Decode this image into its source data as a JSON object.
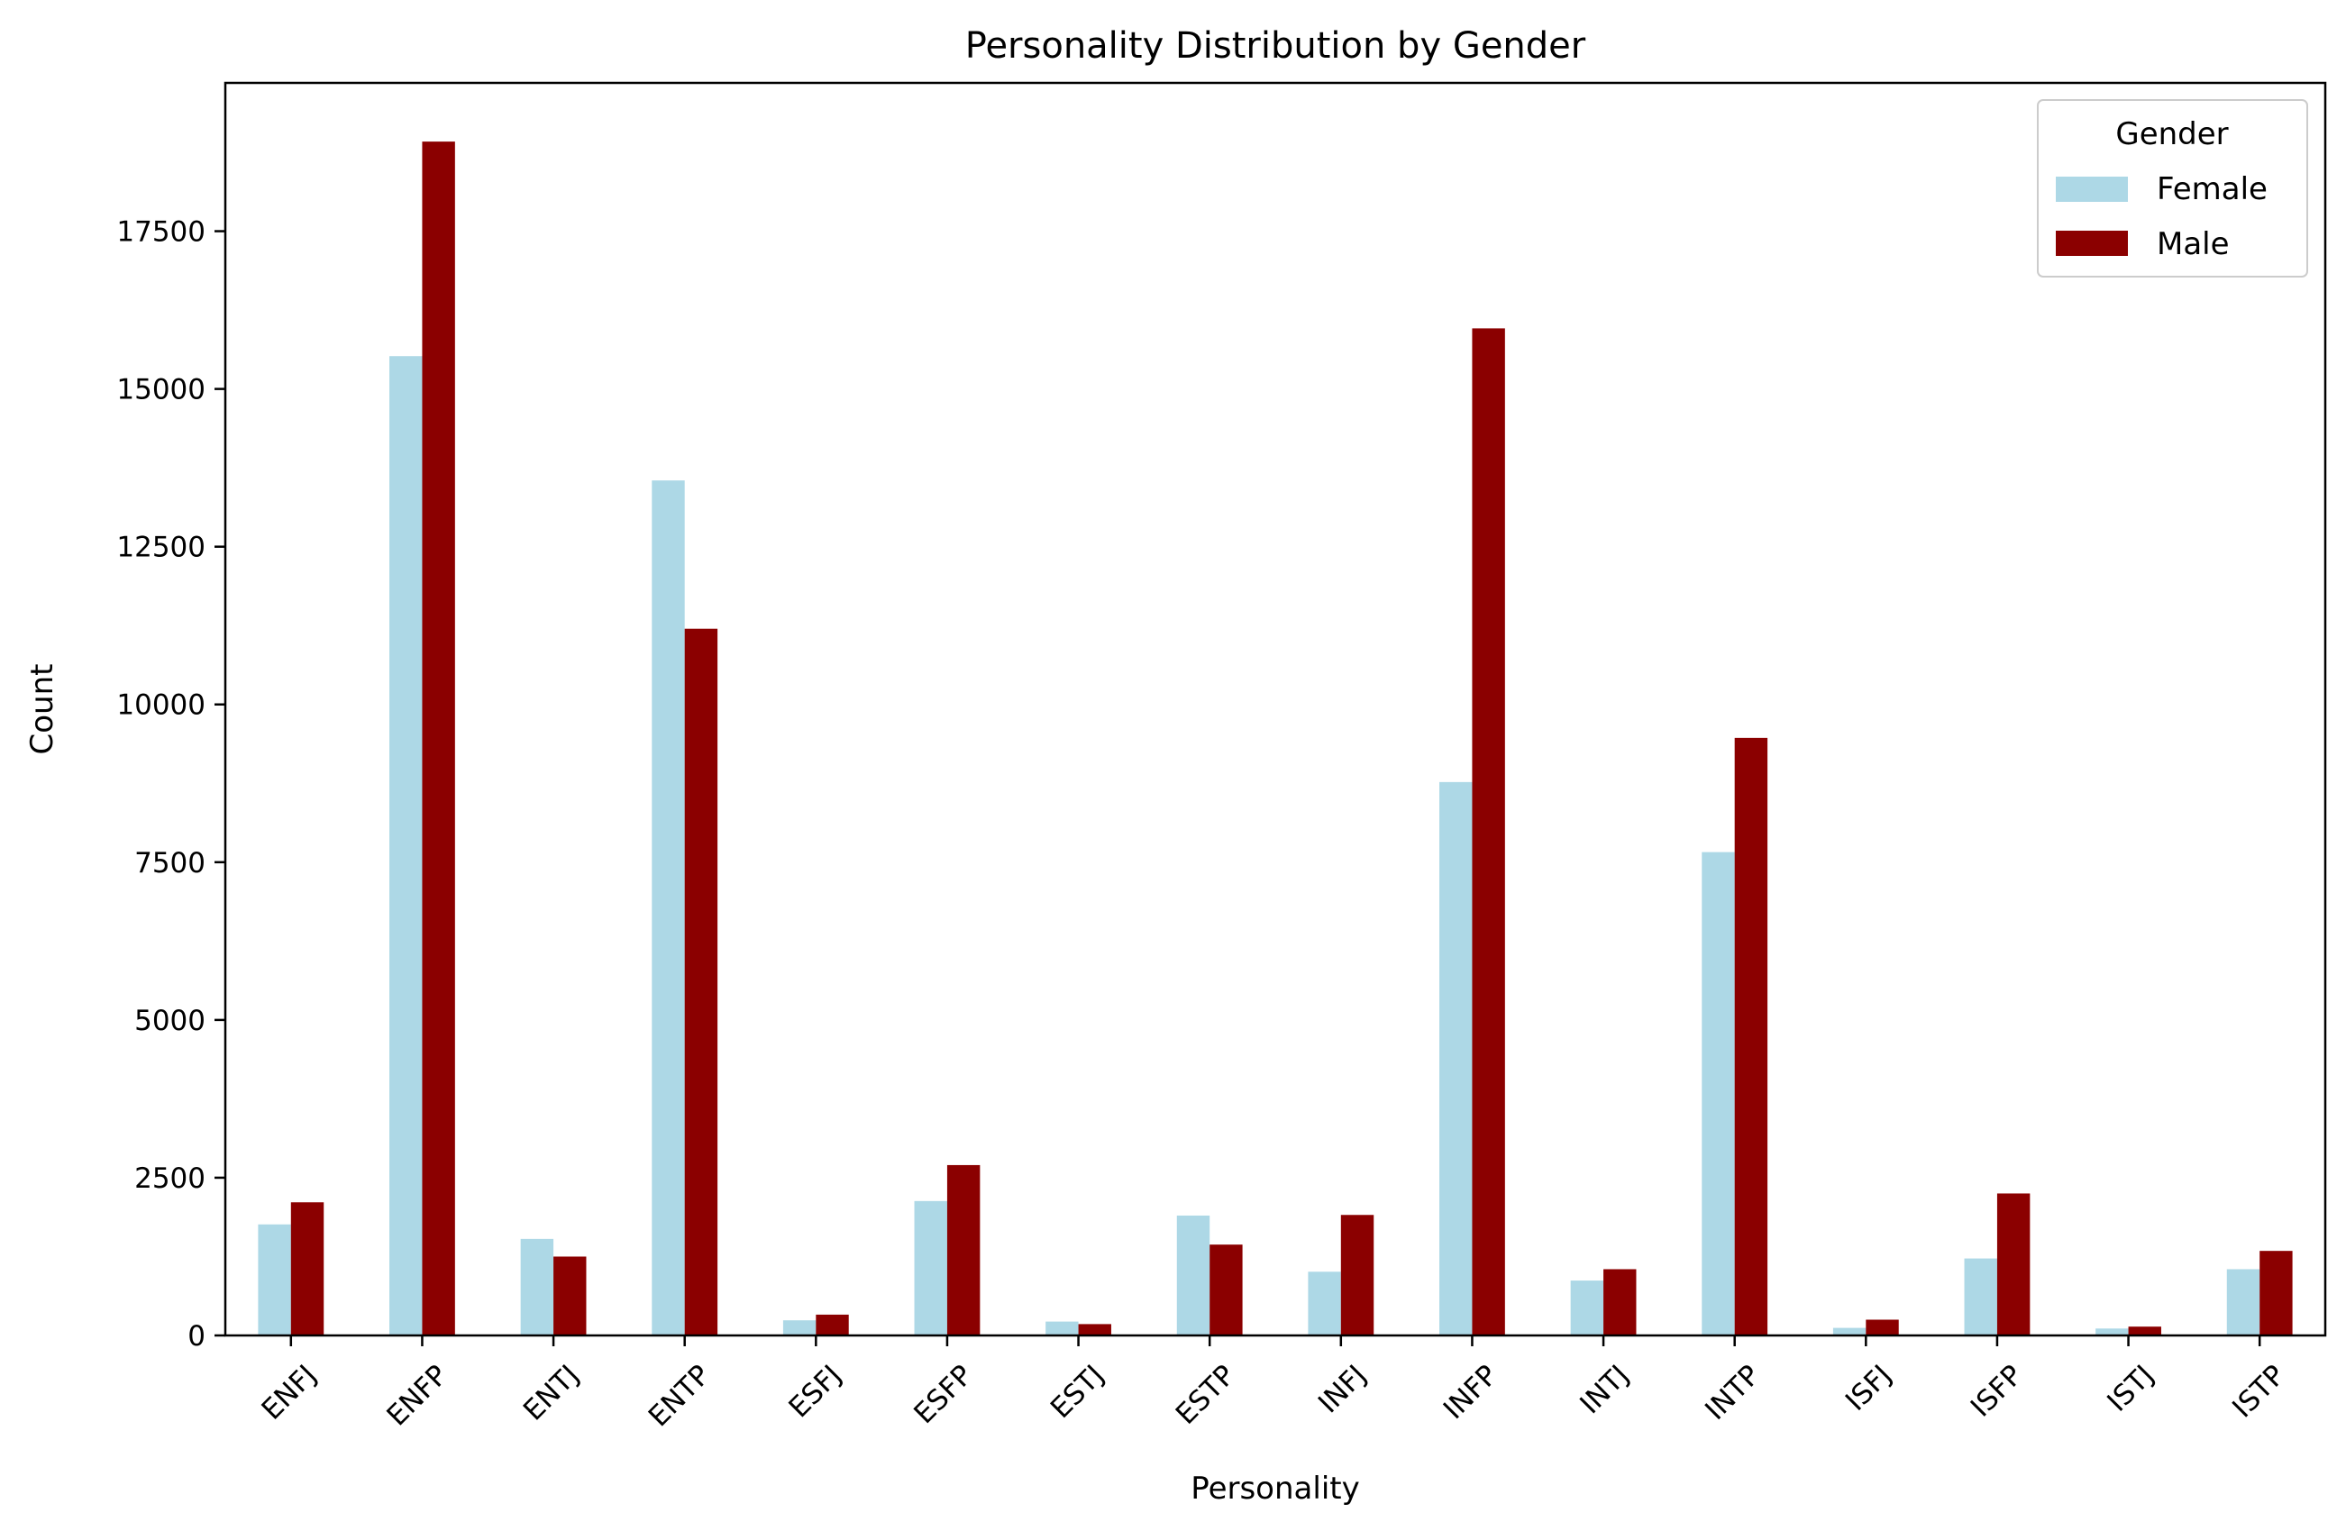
{
  "chart_data": {
    "type": "bar",
    "title": "Personality Distribution by Gender",
    "xlabel": "Personality",
    "ylabel": "Count",
    "categories": [
      "ENFJ",
      "ENFP",
      "ENTJ",
      "ENTP",
      "ESFJ",
      "ESFP",
      "ESTJ",
      "ESTP",
      "INFJ",
      "INFP",
      "INTJ",
      "INTP",
      "ISFJ",
      "ISFP",
      "ISTJ",
      "ISTP"
    ],
    "series": [
      {
        "name": "Female",
        "color": "#add8e6",
        "values": [
          1760,
          15520,
          1530,
          13550,
          240,
          2130,
          220,
          1900,
          1010,
          8770,
          870,
          7660,
          120,
          1220,
          110,
          1050
        ]
      },
      {
        "name": "Male",
        "color": "#8b0000",
        "values": [
          2110,
          18920,
          1250,
          11200,
          330,
          2700,
          180,
          1440,
          1910,
          15960,
          1050,
          9470,
          250,
          2250,
          140,
          1340
        ]
      }
    ],
    "ylim": [
      0,
      19850
    ],
    "yticks": [
      0,
      2500,
      5000,
      7500,
      10000,
      12500,
      15000,
      17500
    ],
    "legend": {
      "title": "Gender",
      "position": "top-right"
    },
    "grid": false
  }
}
